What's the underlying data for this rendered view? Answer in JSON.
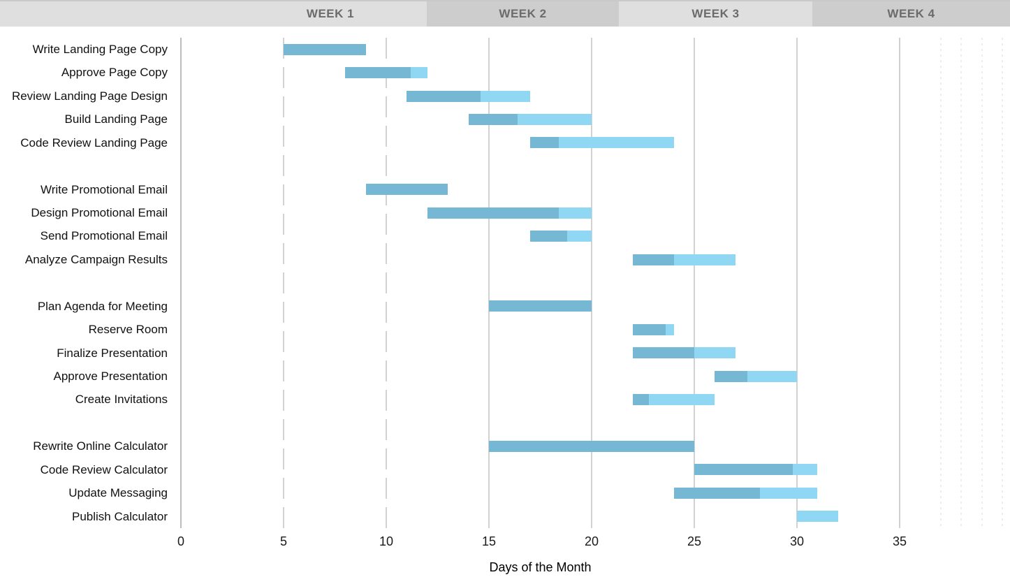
{
  "header": {
    "cells": [
      {
        "label": "",
        "shade": "light"
      },
      {
        "label": "WEEK 1",
        "shade": "light"
      },
      {
        "label": "WEEK 2",
        "shade": "dark"
      },
      {
        "label": "WEEK 3",
        "shade": "light"
      },
      {
        "label": "WEEK 4",
        "shade": "dark"
      }
    ]
  },
  "colors": {
    "bar_complete": "#76B7D3",
    "bar_remaining": "#8FD7F3",
    "gridline": "#D2D2D2",
    "axis_line": "#BDBDBD",
    "faint_gridline": "#EDEDED",
    "header_light": "#DFDFDF",
    "header_dark": "#CDCDCD",
    "header_text": "#6B6B6B",
    "label_text": "#111111"
  },
  "chart_data": {
    "type": "bar",
    "subtype": "gantt",
    "title": "",
    "xlabel": "Days of the Month",
    "x_ticks": [
      0,
      5,
      10,
      15,
      20,
      25,
      30,
      35
    ],
    "xlim": [
      0,
      40.4
    ],
    "grid": {
      "axis_day": 0,
      "dashed_days": [
        5,
        10
      ],
      "solid_days": [
        15,
        20,
        25,
        30,
        35
      ],
      "faint_days": [
        37,
        38,
        39,
        40
      ]
    },
    "legend": "none",
    "bar_segments": [
      "complete",
      "remaining"
    ],
    "groups": [
      {
        "tasks": [
          {
            "name": "Write Landing Page Copy",
            "start": 5,
            "end": 9,
            "pct_complete": 100
          },
          {
            "name": "Approve Page Copy",
            "start": 8,
            "end": 12,
            "pct_complete": 80
          },
          {
            "name": "Review Landing Page Design",
            "start": 11,
            "end": 17,
            "pct_complete": 60
          },
          {
            "name": "Build Landing Page",
            "start": 14,
            "end": 20,
            "pct_complete": 40
          },
          {
            "name": "Code Review Landing Page",
            "start": 17,
            "end": 24,
            "pct_complete": 20
          }
        ]
      },
      {
        "tasks": [
          {
            "name": "Write Promotional Email",
            "start": 9,
            "end": 13,
            "pct_complete": 100
          },
          {
            "name": "Design Promotional Email",
            "start": 12,
            "end": 20,
            "pct_complete": 80
          },
          {
            "name": "Send Promotional Email",
            "start": 17,
            "end": 20,
            "pct_complete": 60
          },
          {
            "name": "Analyze Campaign Results",
            "start": 22,
            "end": 27,
            "pct_complete": 40
          }
        ]
      },
      {
        "tasks": [
          {
            "name": "Plan Agenda for Meeting",
            "start": 15,
            "end": 20,
            "pct_complete": 100
          },
          {
            "name": "Reserve Room",
            "start": 22,
            "end": 24,
            "pct_complete": 80
          },
          {
            "name": "Finalize Presentation",
            "start": 22,
            "end": 27,
            "pct_complete": 60
          },
          {
            "name": "Approve Presentation",
            "start": 26,
            "end": 30,
            "pct_complete": 40
          },
          {
            "name": "Create Invitations",
            "start": 22,
            "end": 26,
            "pct_complete": 20
          }
        ]
      },
      {
        "tasks": [
          {
            "name": "Rewrite Online Calculator",
            "start": 15,
            "end": 25,
            "pct_complete": 100
          },
          {
            "name": "Code Review Calculator",
            "start": 25,
            "end": 31,
            "pct_complete": 80
          },
          {
            "name": "Update Messaging",
            "start": 24,
            "end": 31,
            "pct_complete": 60
          },
          {
            "name": "Publish Calculator",
            "start": 30,
            "end": 32,
            "pct_complete": 0
          }
        ]
      }
    ]
  }
}
